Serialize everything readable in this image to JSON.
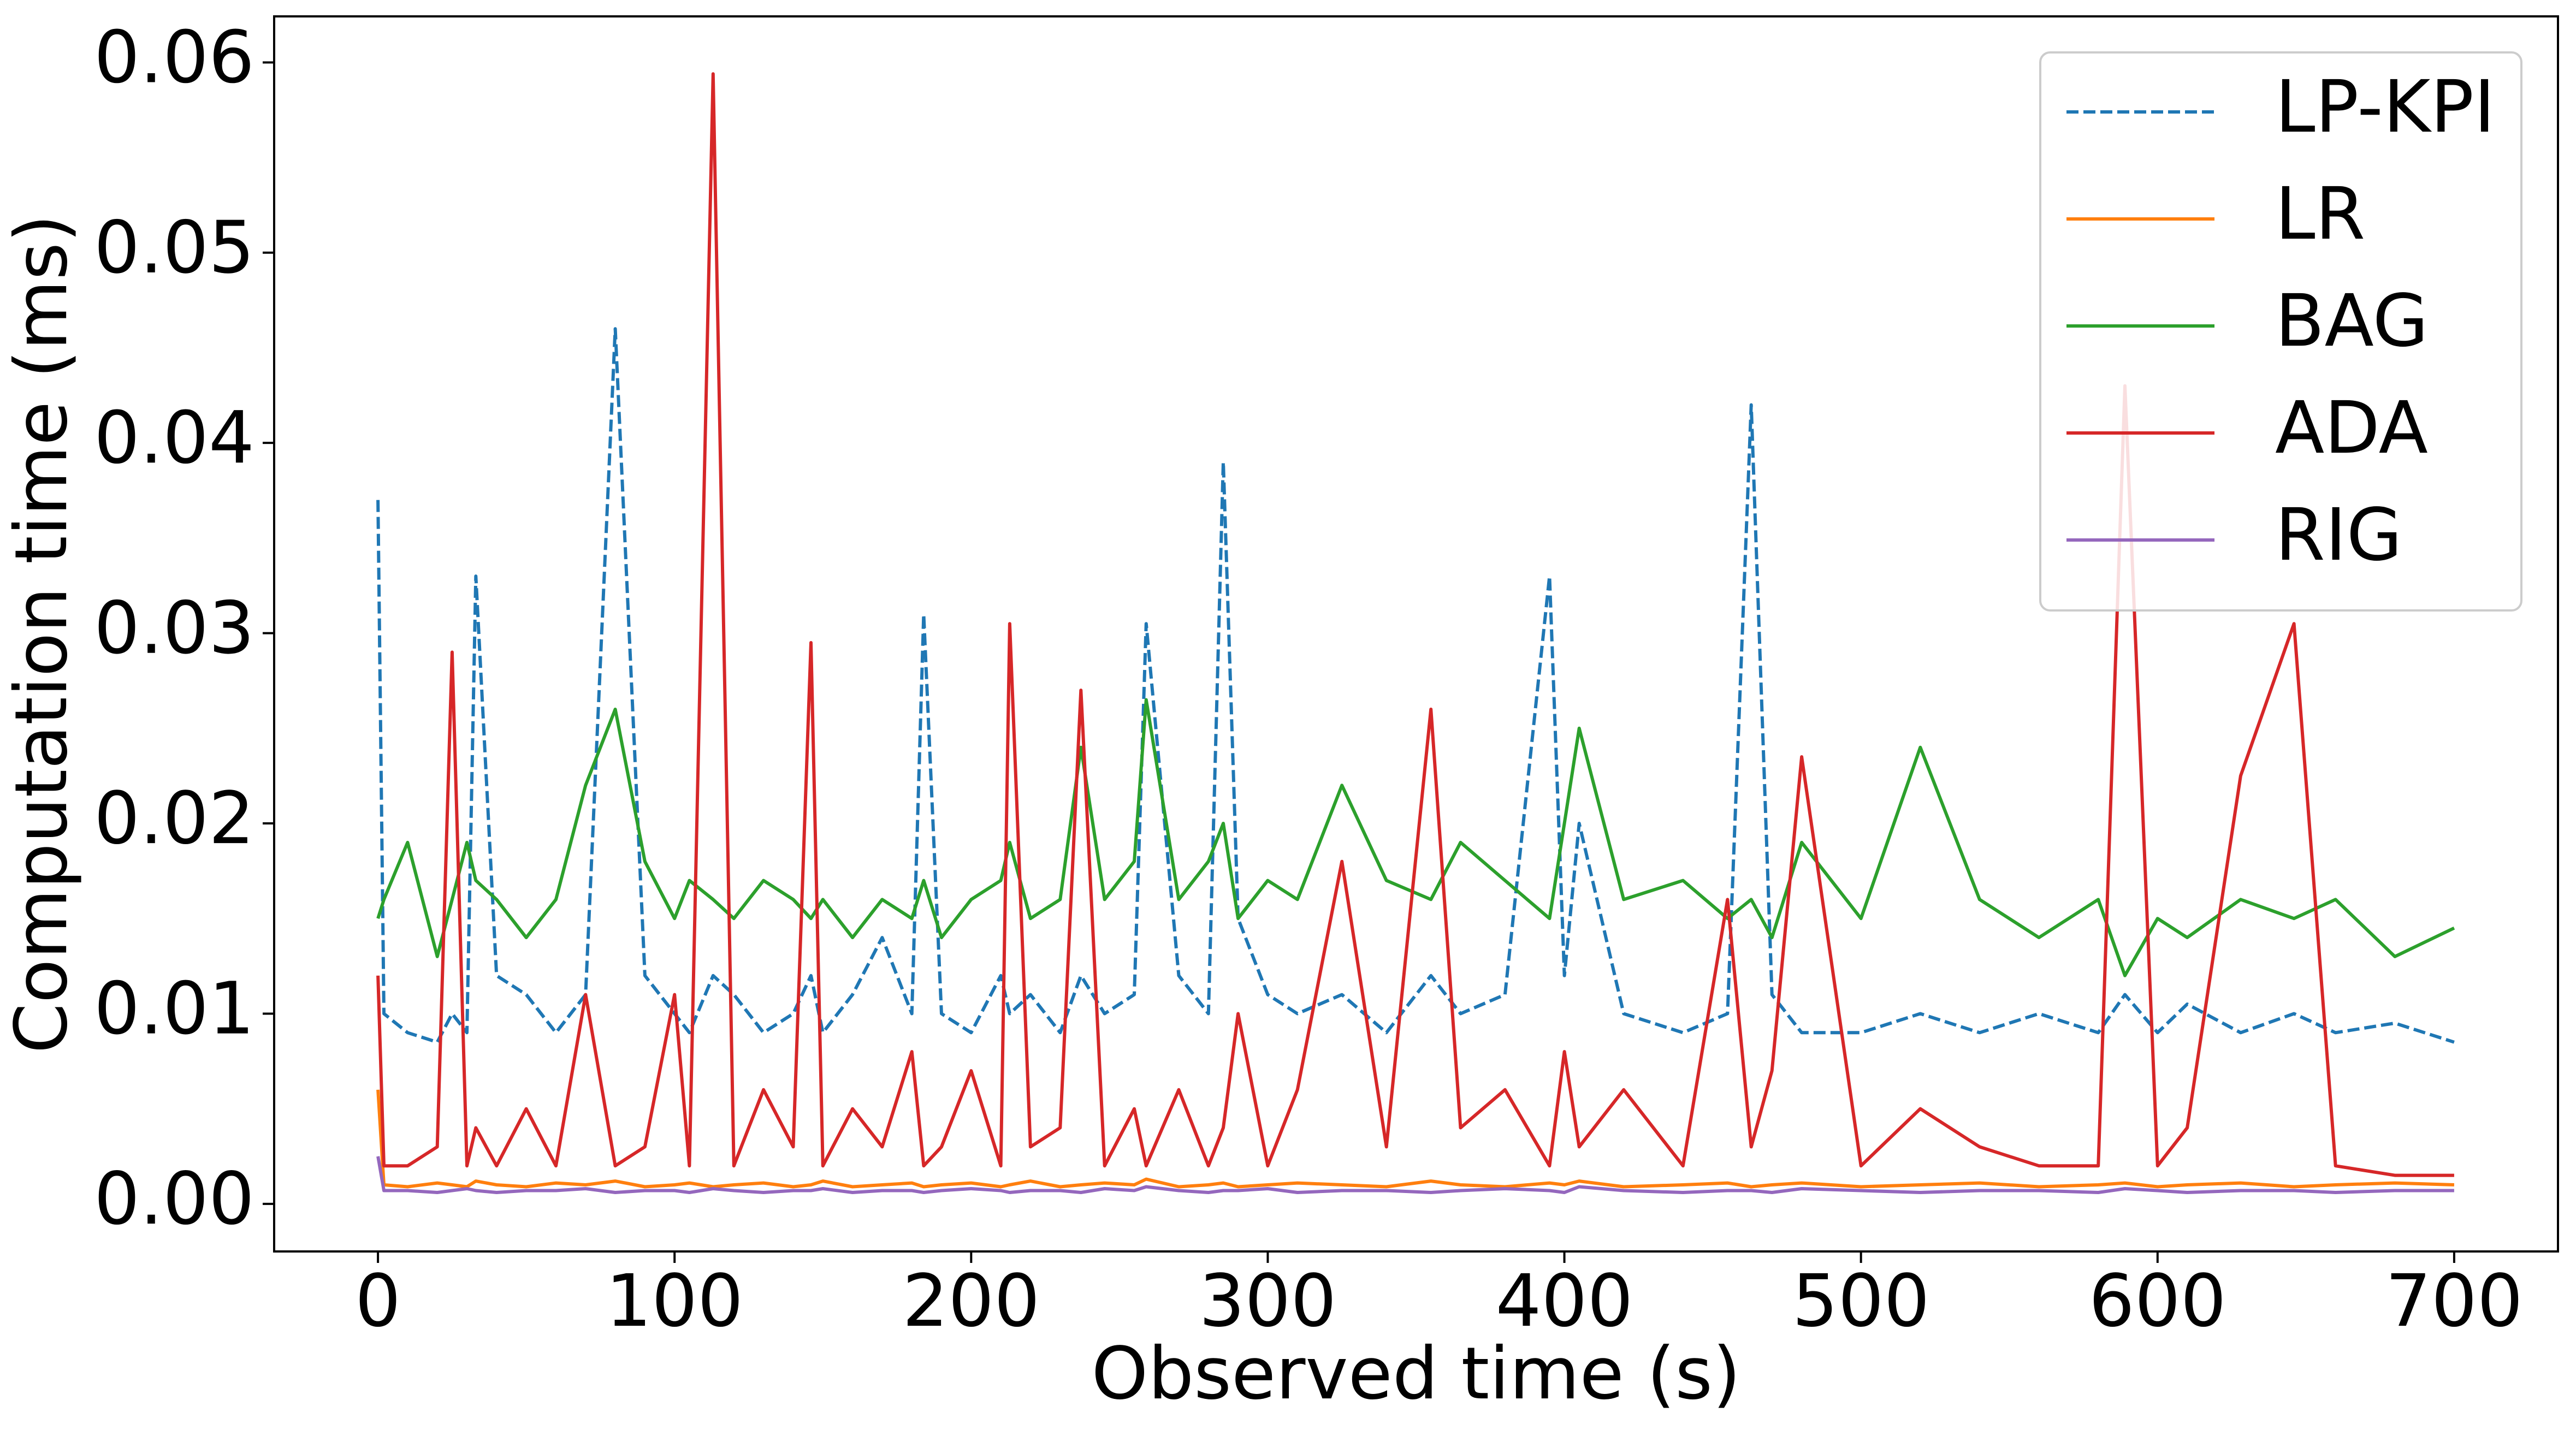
{
  "chart_data": {
    "type": "line",
    "x_label": "Observed time (s)",
    "y_label": "Computation time (ms)",
    "x": [
      0,
      2,
      10,
      20,
      25,
      30,
      33,
      40,
      50,
      60,
      70,
      80,
      90,
      100,
      105,
      113,
      120,
      130,
      140,
      146,
      150,
      160,
      170,
      180,
      184,
      190,
      200,
      210,
      213,
      220,
      230,
      237,
      245,
      255,
      259,
      270,
      280,
      285,
      290,
      300,
      310,
      325,
      340,
      355,
      365,
      380,
      395,
      400,
      405,
      420,
      440,
      455,
      463,
      470,
      480,
      500,
      520,
      540,
      560,
      580,
      589,
      600,
      610,
      628,
      646,
      660,
      680,
      700
    ],
    "series": [
      {
        "name": "LP-KPI",
        "color": "#1f77b4",
        "dashed": true,
        "values": [
          0.037,
          0.01,
          0.009,
          0.0085,
          0.01,
          0.009,
          0.033,
          0.012,
          0.011,
          0.009,
          0.011,
          0.046,
          0.012,
          0.01,
          0.009,
          0.012,
          0.011,
          0.009,
          0.01,
          0.012,
          0.009,
          0.011,
          0.014,
          0.01,
          0.031,
          0.01,
          0.009,
          0.012,
          0.01,
          0.011,
          0.009,
          0.012,
          0.01,
          0.011,
          0.0305,
          0.012,
          0.01,
          0.039,
          0.015,
          0.011,
          0.01,
          0.011,
          0.009,
          0.012,
          0.01,
          0.011,
          0.033,
          0.012,
          0.02,
          0.01,
          0.009,
          0.01,
          0.042,
          0.011,
          0.009,
          0.009,
          0.01,
          0.009,
          0.01,
          0.009,
          0.011,
          0.009,
          0.0105,
          0.009,
          0.01,
          0.009,
          0.0095,
          0.0085
        ]
      },
      {
        "name": "LR",
        "color": "#ff7f0e",
        "dashed": false,
        "values": [
          0.006,
          0.001,
          0.0009,
          0.0011,
          0.001,
          0.0009,
          0.0012,
          0.001,
          0.0009,
          0.0011,
          0.001,
          0.0012,
          0.0009,
          0.001,
          0.0011,
          0.0009,
          0.001,
          0.0011,
          0.0009,
          0.001,
          0.0012,
          0.0009,
          0.001,
          0.0011,
          0.0009,
          0.001,
          0.0011,
          0.0009,
          0.001,
          0.0012,
          0.0009,
          0.001,
          0.0011,
          0.001,
          0.0013,
          0.0009,
          0.001,
          0.0011,
          0.0009,
          0.001,
          0.0011,
          0.001,
          0.0009,
          0.0012,
          0.001,
          0.0009,
          0.0011,
          0.001,
          0.0012,
          0.0009,
          0.001,
          0.0011,
          0.0009,
          0.001,
          0.0011,
          0.0009,
          0.001,
          0.0011,
          0.0009,
          0.001,
          0.0011,
          0.0009,
          0.001,
          0.0011,
          0.0009,
          0.001,
          0.0011,
          0.001
        ]
      },
      {
        "name": "BAG",
        "color": "#2ca02c",
        "dashed": false,
        "values": [
          0.015,
          0.016,
          0.019,
          0.013,
          0.016,
          0.019,
          0.017,
          0.016,
          0.014,
          0.016,
          0.022,
          0.026,
          0.018,
          0.015,
          0.017,
          0.016,
          0.015,
          0.017,
          0.016,
          0.015,
          0.016,
          0.014,
          0.016,
          0.015,
          0.017,
          0.014,
          0.016,
          0.017,
          0.019,
          0.015,
          0.016,
          0.024,
          0.016,
          0.018,
          0.0265,
          0.016,
          0.018,
          0.02,
          0.015,
          0.017,
          0.016,
          0.022,
          0.017,
          0.016,
          0.019,
          0.017,
          0.015,
          0.02,
          0.025,
          0.016,
          0.017,
          0.015,
          0.016,
          0.014,
          0.019,
          0.015,
          0.024,
          0.016,
          0.014,
          0.016,
          0.012,
          0.015,
          0.014,
          0.016,
          0.015,
          0.016,
          0.013,
          0.0145
        ]
      },
      {
        "name": "ADA",
        "color": "#d62728",
        "dashed": false,
        "values": [
          0.012,
          0.002,
          0.002,
          0.003,
          0.029,
          0.002,
          0.004,
          0.002,
          0.005,
          0.002,
          0.011,
          0.002,
          0.003,
          0.011,
          0.002,
          0.0594,
          0.002,
          0.006,
          0.003,
          0.0295,
          0.002,
          0.005,
          0.003,
          0.008,
          0.002,
          0.003,
          0.007,
          0.002,
          0.0305,
          0.003,
          0.004,
          0.027,
          0.002,
          0.005,
          0.002,
          0.006,
          0.002,
          0.004,
          0.01,
          0.002,
          0.006,
          0.018,
          0.003,
          0.026,
          0.004,
          0.006,
          0.002,
          0.008,
          0.003,
          0.006,
          0.002,
          0.016,
          0.003,
          0.007,
          0.0235,
          0.002,
          0.005,
          0.003,
          0.002,
          0.002,
          0.043,
          0.002,
          0.004,
          0.0225,
          0.0305,
          0.002,
          0.0015,
          0.0015
        ]
      },
      {
        "name": "RIG",
        "color": "#9467bd",
        "dashed": false,
        "values": [
          0.0025,
          0.0007,
          0.0007,
          0.0006,
          0.0007,
          0.0008,
          0.0007,
          0.0006,
          0.0007,
          0.0007,
          0.0008,
          0.0006,
          0.0007,
          0.0007,
          0.0006,
          0.0008,
          0.0007,
          0.0006,
          0.0007,
          0.0007,
          0.0008,
          0.0006,
          0.0007,
          0.0007,
          0.0006,
          0.0007,
          0.0008,
          0.0007,
          0.0006,
          0.0007,
          0.0007,
          0.0006,
          0.0008,
          0.0007,
          0.0009,
          0.0007,
          0.0006,
          0.0007,
          0.0007,
          0.0008,
          0.0006,
          0.0007,
          0.0007,
          0.0006,
          0.0007,
          0.0008,
          0.0007,
          0.0006,
          0.0009,
          0.0007,
          0.0006,
          0.0007,
          0.0007,
          0.0006,
          0.0008,
          0.0007,
          0.0006,
          0.0007,
          0.0007,
          0.0006,
          0.0008,
          0.0007,
          0.0006,
          0.0007,
          0.0007,
          0.0006,
          0.0007,
          0.0007
        ]
      }
    ],
    "xlim": [
      -35,
      735
    ],
    "xticks": [
      0,
      100,
      200,
      300,
      400,
      500,
      600,
      700
    ],
    "ylim": [
      -0.0025,
      0.06242
    ],
    "yticks": [
      {
        "value": 0,
        "label": "0.00"
      },
      {
        "value": 0.01,
        "label": "0.01"
      },
      {
        "value": 0.02,
        "label": "0.02"
      },
      {
        "value": 0.03,
        "label": "0.03"
      },
      {
        "value": 0.04,
        "label": "0.04"
      },
      {
        "value": 0.05,
        "label": "0.05"
      },
      {
        "value": 0.06,
        "label": "0.06"
      }
    ],
    "legend": "upper right"
  }
}
